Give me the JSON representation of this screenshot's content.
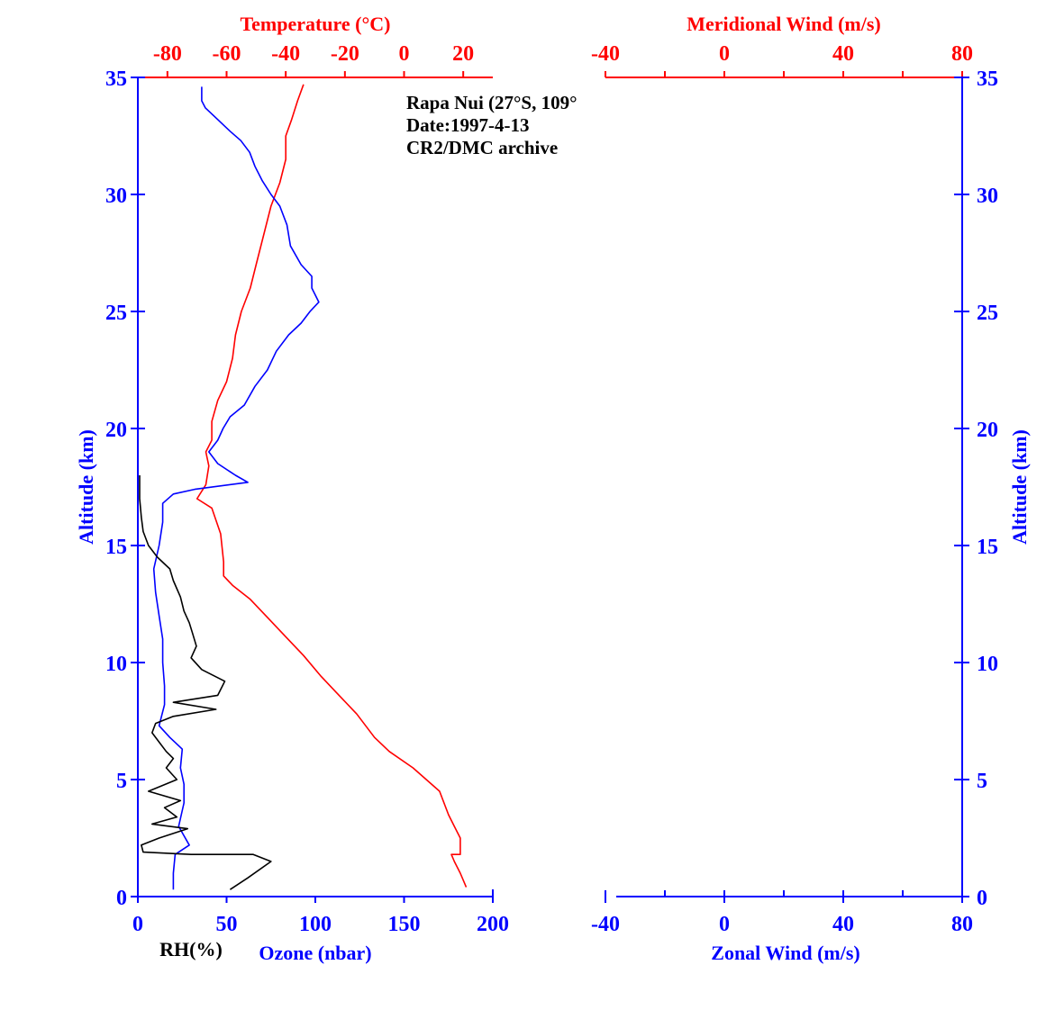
{
  "chart_data": [
    {
      "type": "line",
      "title": "",
      "annotation": [
        "Rapa Nui (27°S, 109°",
        "Date:1997-4-13",
        "CR2/DMC archive"
      ],
      "y_axis": {
        "label": "Altitude (km)",
        "range": [
          0,
          35
        ],
        "ticks": [
          0,
          5,
          10,
          15,
          20,
          25,
          30,
          35
        ],
        "color": "#0000ff"
      },
      "x_axes": [
        {
          "id": "temperature",
          "label": "Temperature (°C)",
          "position": "top",
          "range": [
            -90,
            30
          ],
          "ticks": [
            -80,
            -60,
            -40,
            -20,
            0,
            20
          ],
          "color": "#ff0000"
        },
        {
          "id": "ozone",
          "label": "Ozone (nbar)",
          "position": "bottom",
          "range": [
            0,
            200
          ],
          "ticks": [
            0,
            50,
            100,
            150,
            200
          ],
          "color": "#0000ff"
        },
        {
          "id": "rh",
          "label": "RH(%)",
          "position": "bottom",
          "range": [
            0,
            200
          ],
          "color": "#000000"
        }
      ],
      "series": [
        {
          "axis": "temperature",
          "color": "#ff0000",
          "points": [
            [
              21,
              0.4
            ],
            [
              19,
              1.0
            ],
            [
              17,
              1.5
            ],
            [
              16,
              1.8
            ],
            [
              19,
              1.8
            ],
            [
              19,
              2.5
            ],
            [
              17,
              3.0
            ],
            [
              15,
              3.5
            ],
            [
              12,
              4.5
            ],
            [
              3,
              5.5
            ],
            [
              -5,
              6.2
            ],
            [
              -10,
              6.8
            ],
            [
              -16,
              7.8
            ],
            [
              -22,
              8.6
            ],
            [
              -28,
              9.4
            ],
            [
              -34,
              10.3
            ],
            [
              -40,
              11.1
            ],
            [
              -46,
              11.9
            ],
            [
              -52,
              12.7
            ],
            [
              -58,
              13.3
            ],
            [
              -61,
              13.7
            ],
            [
              -61,
              14.3
            ],
            [
              -62,
              15.5
            ],
            [
              -65,
              16.6
            ],
            [
              -70,
              17.0
            ],
            [
              -67,
              17.6
            ],
            [
              -66,
              18.4
            ],
            [
              -67,
              19.0
            ],
            [
              -65,
              19.5
            ],
            [
              -65,
              20.3
            ],
            [
              -63,
              21.2
            ],
            [
              -60,
              22.0
            ],
            [
              -58,
              23.0
            ],
            [
              -57,
              24.0
            ],
            [
              -55,
              25.0
            ],
            [
              -52,
              26.0
            ],
            [
              -50,
              27.0
            ],
            [
              -47,
              28.5
            ],
            [
              -45,
              29.5
            ],
            [
              -42,
              30.5
            ],
            [
              -40,
              31.5
            ],
            [
              -40,
              32.5
            ],
            [
              -38,
              33.2
            ],
            [
              -36,
              34.0
            ],
            [
              -34,
              34.7
            ]
          ]
        },
        {
          "axis": "ozone",
          "color": "#0000ff",
          "points": [
            [
              20,
              0.3
            ],
            [
              20,
              1.0
            ],
            [
              21,
              1.8
            ],
            [
              29,
              2.2
            ],
            [
              23,
              3.0
            ],
            [
              26,
              4.0
            ],
            [
              26,
              4.8
            ],
            [
              24,
              5.5
            ],
            [
              25,
              6.3
            ],
            [
              18,
              6.8
            ],
            [
              12,
              7.3
            ],
            [
              15,
              8.2
            ],
            [
              15,
              9.0
            ],
            [
              14,
              10.0
            ],
            [
              14,
              11.0
            ],
            [
              12,
              12.0
            ],
            [
              10,
              13.0
            ],
            [
              9,
              14.0
            ],
            [
              12,
              15.0
            ],
            [
              14,
              16.0
            ],
            [
              14,
              16.8
            ],
            [
              20,
              17.2
            ],
            [
              32,
              17.4
            ],
            [
              62,
              17.7
            ],
            [
              55,
              18.0
            ],
            [
              45,
              18.5
            ],
            [
              40,
              19.0
            ],
            [
              45,
              19.5
            ],
            [
              48,
              20.0
            ],
            [
              52,
              20.5
            ],
            [
              60,
              21.0
            ],
            [
              66,
              21.8
            ],
            [
              73,
              22.5
            ],
            [
              78,
              23.3
            ],
            [
              85,
              24.0
            ],
            [
              92,
              24.5
            ],
            [
              97,
              25.0
            ],
            [
              102,
              25.4
            ],
            [
              98,
              26.0
            ],
            [
              98,
              26.5
            ],
            [
              92,
              27.0
            ],
            [
              86,
              27.8
            ],
            [
              84,
              28.7
            ],
            [
              80,
              29.5
            ],
            [
              75,
              30.0
            ],
            [
              70,
              30.6
            ],
            [
              66,
              31.2
            ],
            [
              63,
              31.8
            ],
            [
              58,
              32.3
            ],
            [
              52,
              32.7
            ],
            [
              45,
              33.2
            ],
            [
              38,
              33.7
            ],
            [
              36,
              34.0
            ],
            [
              36,
              34.6
            ]
          ]
        },
        {
          "axis": "rh",
          "color": "#000000",
          "points": [
            [
              52,
              0.3
            ],
            [
              62,
              0.8
            ],
            [
              75,
              1.5
            ],
            [
              65,
              1.8
            ],
            [
              30,
              1.8
            ],
            [
              3,
              1.9
            ],
            [
              2,
              2.2
            ],
            [
              12,
              2.5
            ],
            [
              28,
              2.9
            ],
            [
              8,
              3.1
            ],
            [
              22,
              3.4
            ],
            [
              15,
              3.8
            ],
            [
              24,
              4.1
            ],
            [
              6,
              4.5
            ],
            [
              22,
              5.0
            ],
            [
              16,
              5.5
            ],
            [
              20,
              5.9
            ],
            [
              16,
              6.2
            ],
            [
              12,
              6.6
            ],
            [
              8,
              7.0
            ],
            [
              10,
              7.4
            ],
            [
              20,
              7.7
            ],
            [
              44,
              8.0
            ],
            [
              20,
              8.3
            ],
            [
              45,
              8.6
            ],
            [
              49,
              9.2
            ],
            [
              36,
              9.7
            ],
            [
              30,
              10.2
            ],
            [
              33,
              10.7
            ],
            [
              31,
              11.2
            ],
            [
              29,
              11.7
            ],
            [
              26,
              12.2
            ],
            [
              24,
              12.8
            ],
            [
              20,
              13.5
            ],
            [
              18,
              14.0
            ],
            [
              11,
              14.5
            ],
            [
              6,
              15.0
            ],
            [
              3,
              15.6
            ],
            [
              2,
              16.2
            ],
            [
              1,
              17.0
            ],
            [
              1,
              18.0
            ]
          ]
        }
      ]
    },
    {
      "type": "line",
      "title": "",
      "y_axis": {
        "label": "Altitude (km)",
        "range": [
          0,
          35
        ],
        "ticks": [
          0,
          5,
          10,
          15,
          20,
          25,
          30,
          35
        ],
        "color": "#0000ff",
        "position": "right"
      },
      "x_axes": [
        {
          "id": "meridional",
          "label": "Meridional Wind (m/s)",
          "position": "top",
          "range": [
            -40,
            80
          ],
          "ticks": [
            -40,
            0,
            40,
            80
          ],
          "color": "#ff0000"
        },
        {
          "id": "zonal",
          "label": "Zonal Wind (m/s)",
          "position": "bottom",
          "range": [
            -40,
            80
          ],
          "ticks": [
            -40,
            0,
            40,
            80
          ],
          "color": "#0000ff"
        }
      ],
      "series": []
    }
  ]
}
